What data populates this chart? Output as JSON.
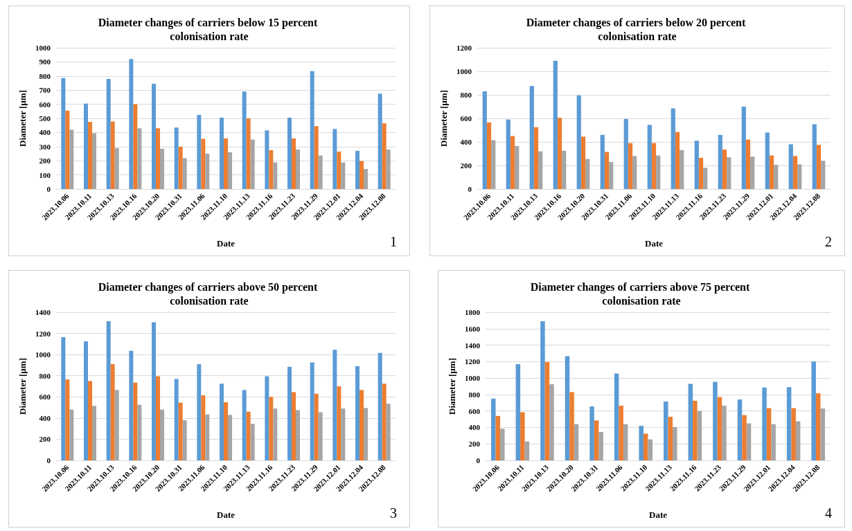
{
  "chart_data": [
    {
      "type": "bar",
      "title": "Diameter changes of carriers below 15 percent colonisation rate",
      "xlabel": "Date",
      "ylabel": "Diameter [µm]",
      "categories": [
        "2023.10.06",
        "2023.10.11",
        "2023.10.13",
        "2023.10.16",
        "2023.10.20",
        "2023.10.31",
        "2023.11.06",
        "2023.11.10",
        "2023.11.13",
        "2023.11.16",
        "2023.11.23",
        "2023.11.29",
        "2023.12.01",
        "2023.12.04",
        "2023.12.08"
      ],
      "series": [
        {
          "color": "#5b9bd5",
          "values": [
            785,
            605,
            780,
            920,
            745,
            435,
            525,
            505,
            690,
            415,
            505,
            835,
            425,
            270,
            675
          ]
        },
        {
          "color": "#ed7d31",
          "values": [
            555,
            475,
            478,
            600,
            430,
            300,
            355,
            358,
            500,
            275,
            358,
            445,
            265,
            198,
            465
          ]
        },
        {
          "color": "#a5a5a5",
          "values": [
            420,
            395,
            290,
            430,
            285,
            218,
            250,
            260,
            350,
            188,
            280,
            237,
            188,
            142,
            280
          ]
        }
      ],
      "ylim": [
        0,
        1000
      ],
      "yticks": [
        0,
        100,
        200,
        300,
        400,
        500,
        600,
        700,
        800,
        900,
        1000
      ],
      "grid": "y",
      "annotations": [
        "1"
      ]
    },
    {
      "type": "bar",
      "title": "Diameter changes of carriers below 20 percent colonisation rate",
      "xlabel": "Date",
      "ylabel": "Diameter [µm]",
      "categories": [
        "2023.10.06",
        "2023.10.11",
        "2023.10.13",
        "2023.10.16",
        "2023.10.20",
        "2023.10.31",
        "2023.11.06",
        "2023.11.10",
        "2023.11.13",
        "2023.11.16",
        "2023.11.23",
        "2023.11.29",
        "2023.12.01",
        "2023.12.04",
        "2023.12.08"
      ],
      "series": [
        {
          "color": "#5b9bd5",
          "values": [
            830,
            590,
            875,
            1090,
            795,
            460,
            595,
            545,
            685,
            410,
            460,
            700,
            480,
            380,
            550
          ]
        },
        {
          "color": "#ed7d31",
          "values": [
            565,
            450,
            525,
            605,
            445,
            315,
            390,
            390,
            485,
            265,
            335,
            420,
            285,
            280,
            375
          ]
        },
        {
          "color": "#a5a5a5",
          "values": [
            415,
            365,
            320,
            325,
            255,
            230,
            280,
            285,
            330,
            180,
            270,
            275,
            205,
            210,
            240
          ]
        }
      ],
      "ylim": [
        0,
        1200
      ],
      "yticks": [
        0,
        200,
        400,
        600,
        800,
        1000,
        1200
      ],
      "grid": "y",
      "annotations": [
        "2"
      ]
    },
    {
      "type": "bar",
      "title": "Diameter changes of carriers above 50 percent colonisation rate",
      "xlabel": "Date",
      "ylabel": "Diameter [µm]",
      "categories": [
        "2023.10.06",
        "2023.10.11",
        "2023.10.13",
        "2023.10.16",
        "2023.10.20",
        "2023.10.31",
        "2023.11.06",
        "2023.11.10",
        "2023.11.13",
        "2023.11.16",
        "2023.11.23",
        "2023.11.29",
        "2023.12.01",
        "2023.12.04",
        "2023.12.08"
      ],
      "series": [
        {
          "color": "#5b9bd5",
          "values": [
            1165,
            1125,
            1315,
            1035,
            1305,
            770,
            910,
            725,
            665,
            795,
            885,
            925,
            1045,
            890,
            1015
          ]
        },
        {
          "color": "#ed7d31",
          "values": [
            765,
            750,
            910,
            735,
            795,
            545,
            615,
            550,
            460,
            600,
            645,
            630,
            700,
            665,
            725
          ]
        },
        {
          "color": "#a5a5a5",
          "values": [
            480,
            515,
            665,
            525,
            480,
            380,
            435,
            430,
            345,
            490,
            475,
            455,
            490,
            495,
            535
          ]
        }
      ],
      "ylim": [
        0,
        1400
      ],
      "yticks": [
        0,
        200,
        400,
        600,
        800,
        1000,
        1200,
        1400
      ],
      "grid": "y",
      "annotations": [
        "3"
      ]
    },
    {
      "type": "bar",
      "title": "Diameter changes of carriers above 75 percent colonisation rate",
      "xlabel": "Date",
      "ylabel": "Diameter [µm]",
      "categories": [
        "2023.10.06",
        "2023.10.11",
        "2023.10.13",
        "2023.10.20",
        "2023.10.31",
        "2023.11.06",
        "2023.11.10",
        "2023.11.13",
        "2023.11.16",
        "2023.11.23",
        "2023.11.29",
        "2023.12.01",
        "2023.12.04",
        "2023.12.08"
      ],
      "series": [
        {
          "color": "#5b9bd5",
          "values": [
            750,
            1170,
            1690,
            1265,
            655,
            1055,
            420,
            715,
            930,
            955,
            740,
            885,
            890,
            1200
          ]
        },
        {
          "color": "#ed7d31",
          "values": [
            540,
            585,
            1195,
            830,
            485,
            665,
            325,
            530,
            725,
            770,
            550,
            635,
            635,
            815
          ]
        },
        {
          "color": "#a5a5a5",
          "values": [
            385,
            230,
            925,
            440,
            345,
            440,
            255,
            405,
            600,
            665,
            450,
            440,
            475,
            630
          ]
        }
      ],
      "ylim": [
        0,
        1800
      ],
      "yticks": [
        0,
        200,
        400,
        600,
        800,
        1000,
        1200,
        1400,
        1600,
        1800
      ],
      "grid": "y",
      "annotations": [
        "4"
      ]
    }
  ]
}
